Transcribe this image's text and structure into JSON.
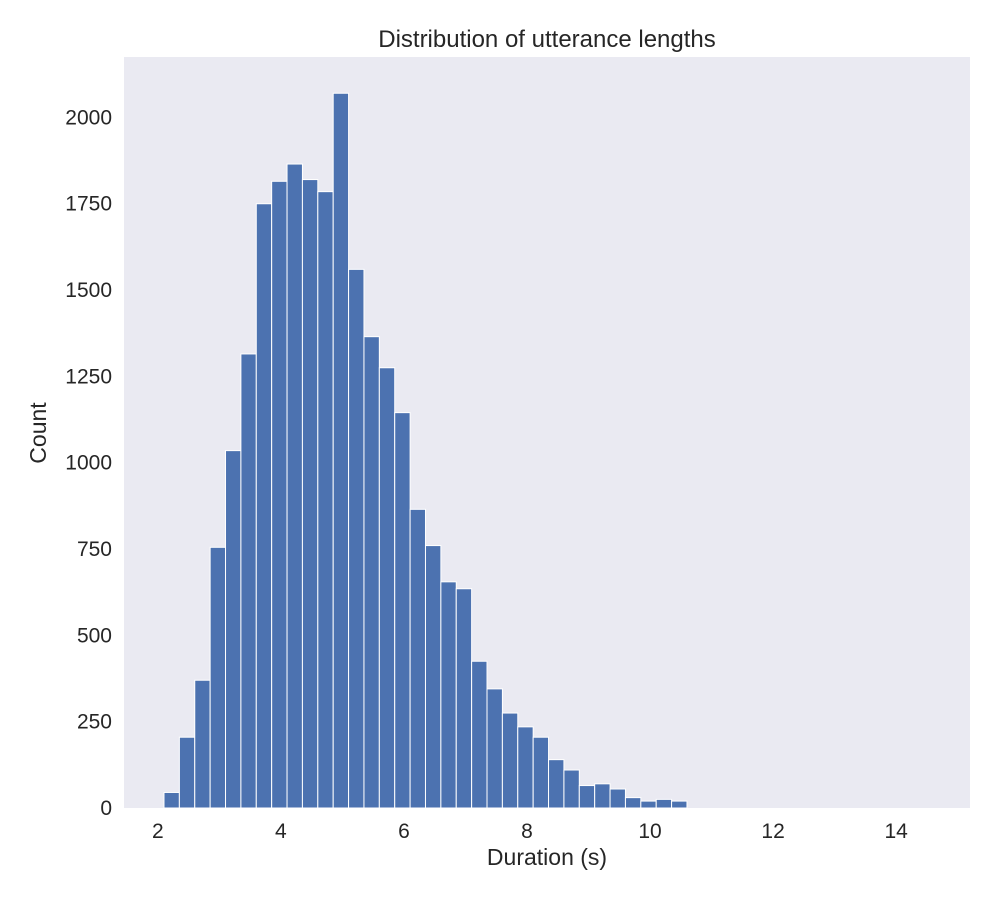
{
  "chart_data": {
    "type": "bar",
    "title": "Distribution of utterance lengths",
    "xlabel": "Duration (s)",
    "ylabel": "Count",
    "xlim": [
      1.45,
      15.2
    ],
    "ylim": [
      0,
      2175
    ],
    "xticks": [
      2,
      4,
      6,
      8,
      10,
      12,
      14
    ],
    "yticks": [
      0,
      250,
      500,
      750,
      1000,
      1250,
      1500,
      1750,
      2000
    ],
    "grid": false,
    "bin_start": 2.1,
    "bin_width": 0.25,
    "values": [
      45,
      205,
      370,
      755,
      1035,
      1315,
      1750,
      1815,
      1865,
      1820,
      1785,
      2070,
      1560,
      1365,
      1275,
      1145,
      865,
      760,
      655,
      635,
      425,
      345,
      275,
      235,
      205,
      140,
      110,
      65,
      70,
      55,
      30,
      20,
      25,
      20
    ],
    "colors": {
      "bar": "#4c72b0",
      "bar_edge": "#ffffff",
      "background": "#eaeaf2"
    }
  }
}
